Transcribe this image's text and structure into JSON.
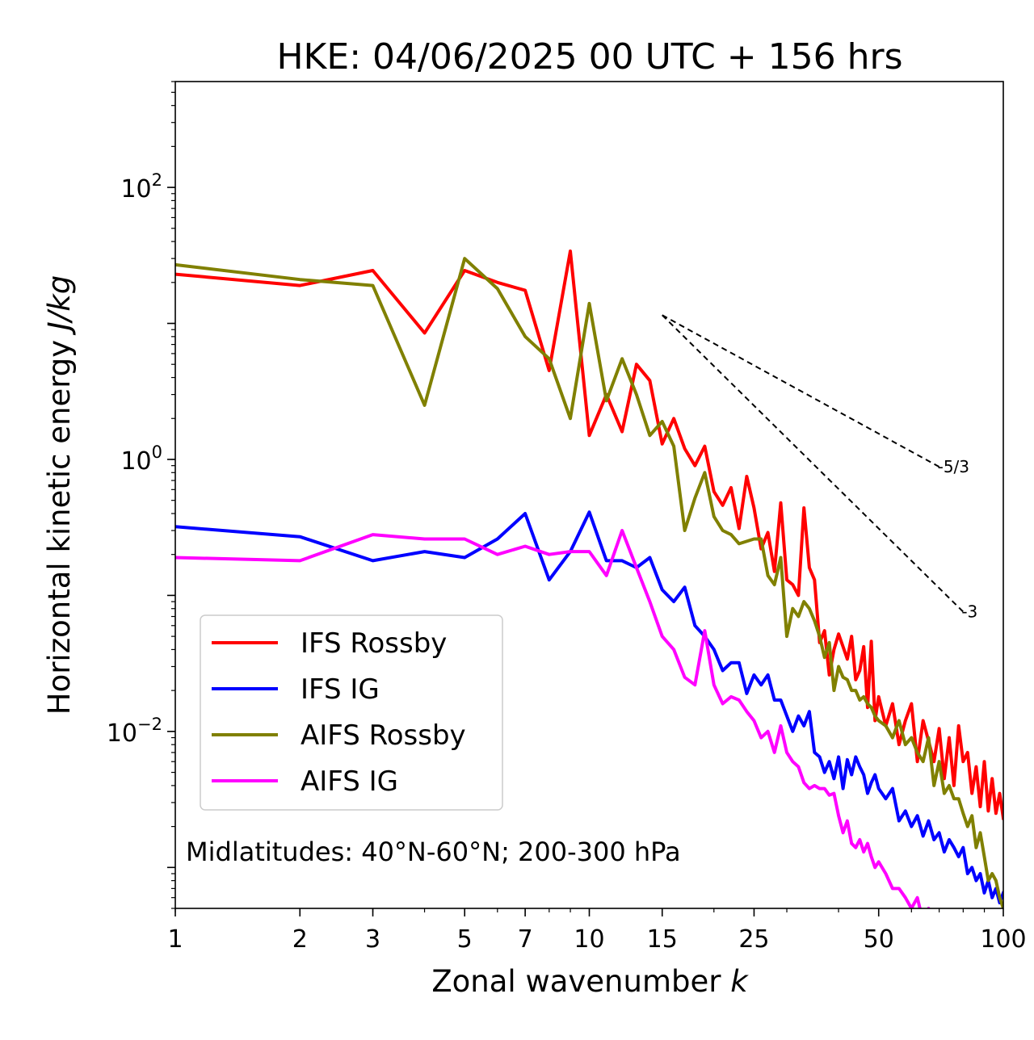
{
  "chart_data": {
    "type": "line",
    "title": "HKE: 04/06/2025 00 UTC + 156 hrs",
    "xlabel_main": "Zonal wavenumber ",
    "xlabel_var": "k",
    "ylabel_main": "Horizontal kinetic energy ",
    "ylabel_unit": "J/kg",
    "xscale": "log",
    "yscale": "log",
    "xlim": [
      1,
      100
    ],
    "ylim": [
      0.0005,
      600
    ],
    "x_ticks": [
      {
        "value": 1,
        "label": "1"
      },
      {
        "value": 2,
        "label": "2"
      },
      {
        "value": 3,
        "label": "3"
      },
      {
        "value": 5,
        "label": "5"
      },
      {
        "value": 7,
        "label": "7"
      },
      {
        "value": 10,
        "label": "10"
      },
      {
        "value": 15,
        "label": "15"
      },
      {
        "value": 25,
        "label": "25"
      },
      {
        "value": 50,
        "label": "50"
      },
      {
        "value": 100,
        "label": "100"
      }
    ],
    "y_ticks": [
      {
        "value": 100,
        "base": "10",
        "exp": "2"
      },
      {
        "value": 1,
        "base": "10",
        "exp": "0"
      },
      {
        "value": 0.01,
        "base": "10",
        "exp": "−2"
      }
    ],
    "legend_position": "lower-left",
    "annotation": "Midlatitudes: 40°N-60°N; 200-300 hPa",
    "reference_lines": [
      {
        "label": "-5/3",
        "slope": -1.6667,
        "x": [
          15,
          70
        ],
        "y_start": 11.5
      },
      {
        "label": "-3",
        "slope": -3,
        "x": [
          15,
          80
        ],
        "y_start": 11.5
      }
    ],
    "series": [
      {
        "name": "IFS Rossby",
        "color": "#ff0000",
        "x": [
          1,
          2,
          3,
          4,
          5,
          6,
          7,
          8,
          9,
          10,
          11,
          12,
          13,
          14,
          15,
          16,
          17,
          18,
          19,
          20,
          21,
          22,
          23,
          24,
          25,
          26,
          27,
          28,
          29,
          30,
          31,
          32,
          33,
          34,
          35,
          36,
          37,
          38,
          39,
          40,
          41,
          42,
          43,
          44,
          45,
          46,
          47,
          48,
          49,
          50,
          52,
          54,
          56,
          58,
          60,
          62,
          64,
          66,
          68,
          70,
          72,
          74,
          76,
          78,
          80,
          82,
          84,
          86,
          88,
          90,
          92,
          94,
          96,
          98,
          100
        ],
        "y": [
          23,
          19,
          24.5,
          8.5,
          24.5,
          20,
          17.5,
          4.5,
          34,
          1.5,
          3,
          1.6,
          5,
          3.8,
          1.3,
          2,
          1.2,
          0.9,
          1.25,
          0.58,
          0.46,
          0.62,
          0.31,
          0.75,
          0.44,
          0.22,
          0.29,
          0.15,
          0.48,
          0.13,
          0.12,
          0.1,
          0.44,
          0.16,
          0.13,
          0.045,
          0.055,
          0.026,
          0.04,
          0.052,
          0.042,
          0.034,
          0.05,
          0.024,
          0.028,
          0.042,
          0.015,
          0.046,
          0.012,
          0.018,
          0.011,
          0.016,
          0.008,
          0.012,
          0.016,
          0.006,
          0.012,
          0.0085,
          0.006,
          0.0105,
          0.0045,
          0.009,
          0.004,
          0.011,
          0.006,
          0.007,
          0.0035,
          0.0055,
          0.0028,
          0.006,
          0.0026,
          0.0045,
          0.0025,
          0.0035,
          0.0023
        ]
      },
      {
        "name": "IFS IG",
        "color": "#0000ff",
        "x": [
          1,
          2,
          3,
          4,
          5,
          6,
          7,
          8,
          9,
          10,
          11,
          12,
          13,
          14,
          15,
          16,
          17,
          18,
          19,
          20,
          21,
          22,
          23,
          24,
          25,
          26,
          27,
          28,
          29,
          30,
          31,
          32,
          33,
          34,
          35,
          36,
          37,
          38,
          39,
          40,
          41,
          42,
          43,
          44,
          45,
          46,
          47,
          48,
          49,
          50,
          52,
          54,
          56,
          58,
          60,
          62,
          64,
          66,
          68,
          70,
          72,
          74,
          76,
          78,
          80,
          82,
          84,
          86,
          88,
          90,
          92,
          94,
          96,
          98,
          100
        ],
        "y": [
          0.32,
          0.27,
          0.18,
          0.21,
          0.19,
          0.26,
          0.4,
          0.13,
          0.21,
          0.41,
          0.18,
          0.18,
          0.16,
          0.19,
          0.11,
          0.09,
          0.115,
          0.06,
          0.05,
          0.04,
          0.028,
          0.032,
          0.032,
          0.019,
          0.026,
          0.022,
          0.026,
          0.017,
          0.017,
          0.013,
          0.01,
          0.013,
          0.011,
          0.014,
          0.007,
          0.0065,
          0.005,
          0.006,
          0.0045,
          0.0065,
          0.0038,
          0.0062,
          0.0048,
          0.0065,
          0.0055,
          0.0048,
          0.0035,
          0.0042,
          0.0048,
          0.0038,
          0.0032,
          0.0038,
          0.0022,
          0.0026,
          0.002,
          0.0024,
          0.0017,
          0.0022,
          0.0016,
          0.0018,
          0.0013,
          0.0016,
          0.0014,
          0.0012,
          0.0014,
          0.0009,
          0.001,
          0.0008,
          0.0009,
          0.00065,
          0.0008,
          0.0006,
          0.0007,
          0.00055,
          0.00065
        ]
      },
      {
        "name": "AIFS Rossby",
        "color": "#808000",
        "x": [
          1,
          2,
          3,
          4,
          5,
          6,
          7,
          8,
          9,
          10,
          11,
          12,
          13,
          14,
          15,
          16,
          17,
          18,
          19,
          20,
          21,
          22,
          23,
          24,
          25,
          26,
          27,
          28,
          29,
          30,
          31,
          32,
          33,
          34,
          35,
          36,
          37,
          38,
          39,
          40,
          41,
          42,
          43,
          44,
          45,
          46,
          47,
          48,
          49,
          50,
          52,
          54,
          56,
          58,
          60,
          62,
          64,
          66,
          68,
          70,
          72,
          74,
          76,
          78,
          80,
          82,
          84,
          86,
          88,
          90,
          92,
          94,
          96,
          98,
          100
        ],
        "y": [
          27,
          21,
          19,
          2.5,
          30,
          18,
          8,
          5.5,
          2,
          14,
          2.7,
          5.5,
          3,
          1.5,
          1.9,
          1.25,
          0.3,
          0.52,
          0.8,
          0.38,
          0.3,
          0.28,
          0.24,
          0.25,
          0.26,
          0.26,
          0.14,
          0.12,
          0.19,
          0.05,
          0.08,
          0.07,
          0.09,
          0.08,
          0.065,
          0.05,
          0.035,
          0.045,
          0.02,
          0.03,
          0.025,
          0.024,
          0.02,
          0.02,
          0.017,
          0.018,
          0.016,
          0.015,
          0.013,
          0.012,
          0.011,
          0.009,
          0.012,
          0.008,
          0.009,
          0.007,
          0.006,
          0.009,
          0.004,
          0.006,
          0.0035,
          0.004,
          0.0032,
          0.0032,
          0.0025,
          0.002,
          0.0024,
          0.0014,
          0.0018,
          0.0012,
          0.0008,
          0.0009,
          0.0008,
          0.0006,
          0.0005
        ]
      },
      {
        "name": "AIFS IG",
        "color": "#ff00ff",
        "x": [
          1,
          2,
          3,
          4,
          5,
          6,
          7,
          8,
          9,
          10,
          11,
          12,
          13,
          14,
          15,
          16,
          17,
          18,
          19,
          20,
          21,
          22,
          23,
          24,
          25,
          26,
          27,
          28,
          29,
          30,
          31,
          32,
          33,
          34,
          35,
          36,
          37,
          38,
          39,
          40,
          41,
          42,
          43,
          44,
          45,
          46,
          47,
          48,
          49,
          50,
          52,
          54,
          56,
          58,
          60,
          62,
          64,
          66,
          68,
          70
        ],
        "y": [
          0.19,
          0.18,
          0.28,
          0.26,
          0.26,
          0.2,
          0.23,
          0.2,
          0.21,
          0.21,
          0.14,
          0.3,
          0.16,
          0.09,
          0.05,
          0.04,
          0.025,
          0.022,
          0.055,
          0.022,
          0.016,
          0.018,
          0.017,
          0.014,
          0.012,
          0.009,
          0.01,
          0.007,
          0.011,
          0.007,
          0.006,
          0.0055,
          0.0042,
          0.0038,
          0.004,
          0.0038,
          0.0038,
          0.0034,
          0.0035,
          0.0024,
          0.0018,
          0.0022,
          0.0015,
          0.0014,
          0.0016,
          0.0013,
          0.0015,
          0.0012,
          0.001,
          0.0011,
          0.0009,
          0.0007,
          0.0007,
          0.0006,
          0.0005,
          0.0006,
          0.0004,
          0.0005,
          0.0004,
          0.0003
        ]
      }
    ]
  }
}
